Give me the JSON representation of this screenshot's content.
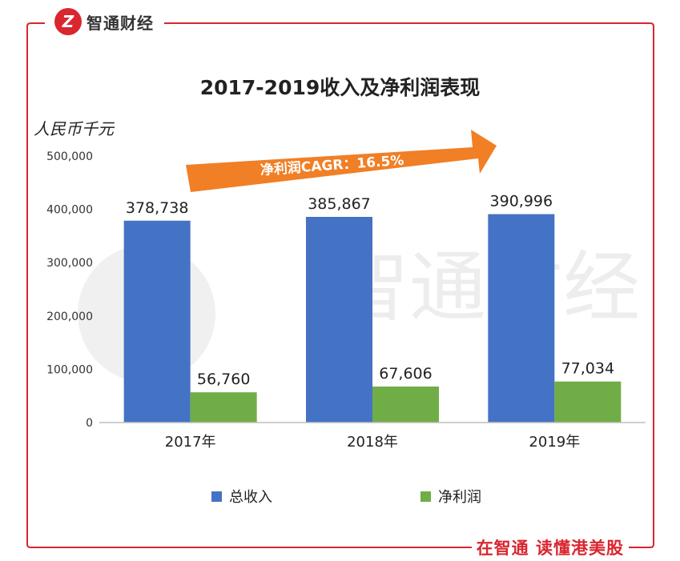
{
  "brand": {
    "name": "智通财经",
    "logo_letter": "Z",
    "footer": "在智通 读懂港美股",
    "accent": "#d9262f"
  },
  "watermark": {
    "text": "智通财经"
  },
  "annotation": {
    "text": "净利润CAGR：16.5%",
    "color": "#f07f26"
  },
  "chart_data": {
    "type": "bar",
    "title": "2017-2019收入及净利润表现",
    "ylabel": "人民币千元",
    "xlabel": "",
    "categories": [
      "2017年",
      "2018年",
      "2019年"
    ],
    "ylim": [
      0,
      500000
    ],
    "yticks": [
      "0",
      "100,000",
      "200,000",
      "300,000",
      "400,000",
      "500,000"
    ],
    "ytick_values": [
      0,
      100000,
      200000,
      300000,
      400000,
      500000
    ],
    "grid": false,
    "legend": "bottom",
    "series": [
      {
        "name": "总收入",
        "color": "#4472c4",
        "values": [
          378738,
          385867,
          390996
        ],
        "labels": [
          "378,738",
          "385,867",
          "390,996"
        ]
      },
      {
        "name": "净利润",
        "color": "#70ad47",
        "values": [
          56760,
          67606,
          77034
        ],
        "labels": [
          "56,760",
          "67,606",
          "77,034"
        ]
      }
    ]
  }
}
